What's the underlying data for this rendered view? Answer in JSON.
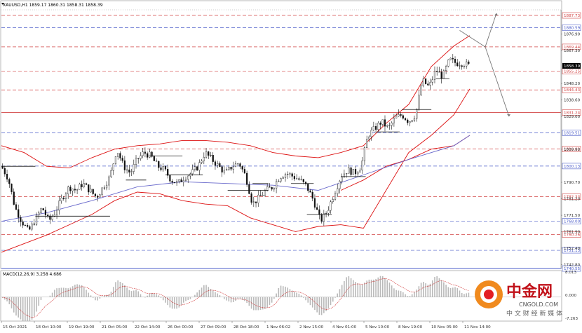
{
  "header": {
    "symbol_line": "XAUUSD,H1  1859.17 1860.31 1858.31 1858.39"
  },
  "macd": {
    "label": "MACD(12,26,9) 3.258 4.686",
    "top_tick": "8.013",
    "zero_tick": "0.000",
    "bottom_tick": "-7.263",
    "range": [
      -7.263,
      8.013
    ]
  },
  "watermark": {
    "cn": "中金网",
    "domain": "CNGOLD.COM",
    "slogan": "中 文 财 经 新 媒 体"
  },
  "colors": {
    "bull": "#111111",
    "bear": "#111111",
    "bb": "#dd1111",
    "ma": "#6a6acc",
    "red_level": "#d24545",
    "blue_level": "#4a5bc8",
    "label_bg": "#ffffff",
    "macd_hist": "#b9b9b9",
    "macd_signal": "#cc2222"
  },
  "chart_data": {
    "type": "candlestick",
    "symbol": "XAUUSD",
    "timeframe": "H1",
    "ylim": [
      1740.55,
      1891.0
    ],
    "ohlc_last": {
      "open": 1859.17,
      "high": 1860.31,
      "low": 1858.31,
      "close": 1858.39
    },
    "current_price": "1858.39",
    "price_ticks": [
      "1876.90",
      "1867.30",
      "1848.20",
      "1838.60",
      "1829.00",
      "1809.90",
      "1790.70",
      "1781.20",
      "1771.50",
      "1761.90",
      "1752.40",
      "1742.80"
    ],
    "x_tick_labels": [
      "15 Oct 2021",
      "18 Oct 10:00",
      "19 Oct 19:00",
      "21 Oct 05:00",
      "22 Oct 14:00",
      "26 Oct 00:00",
      "27 Oct 09:00",
      "28 Oct 18:00",
      "1 Nov 06:02",
      "2 Nov 15:00",
      "4 Nov 01:00",
      "5 Nov 10:00",
      "8 Nov 19:00",
      "10 Nov 05:00",
      "11 Nov 14:00"
    ],
    "levels": [
      {
        "value": "1887.73",
        "color": "red"
      },
      {
        "value": "1880.59",
        "color": "blue"
      },
      {
        "value": "1869.44",
        "color": "red"
      },
      {
        "value": "1855.25",
        "color": "red"
      },
      {
        "value": "1844.43",
        "color": "red"
      },
      {
        "value": "1831.24",
        "color": "red",
        "solid": true
      },
      {
        "value": "1819.51",
        "color": "blue"
      },
      {
        "value": "1810.02",
        "color": "red"
      },
      {
        "value": "1800.13",
        "color": "blue"
      },
      {
        "value": "1782.33",
        "color": "red"
      },
      {
        "value": "1768.00",
        "color": "blue"
      },
      {
        "value": "1760.26",
        "color": "red"
      },
      {
        "value": "1751.13",
        "color": "blue"
      },
      {
        "value": "1740.55",
        "color": "blue",
        "solid": true
      }
    ],
    "close_path": [
      [
        0,
        1800
      ],
      [
        6,
        1793
      ],
      [
        12,
        1776
      ],
      [
        18,
        1768
      ],
      [
        24,
        1762
      ],
      [
        30,
        1769
      ],
      [
        36,
        1776
      ],
      [
        42,
        1768
      ],
      [
        48,
        1774
      ],
      [
        54,
        1782
      ],
      [
        60,
        1788
      ],
      [
        66,
        1786
      ],
      [
        72,
        1790
      ],
      [
        78,
        1786
      ],
      [
        84,
        1782
      ],
      [
        90,
        1788
      ],
      [
        96,
        1794
      ],
      [
        102,
        1810
      ],
      [
        108,
        1800
      ],
      [
        114,
        1796
      ],
      [
        120,
        1804
      ],
      [
        126,
        1808
      ],
      [
        132,
        1806
      ],
      [
        138,
        1800
      ],
      [
        144,
        1798
      ],
      [
        150,
        1792
      ],
      [
        156,
        1790
      ],
      [
        162,
        1794
      ],
      [
        168,
        1796
      ],
      [
        174,
        1800
      ],
      [
        180,
        1808
      ],
      [
        186,
        1804
      ],
      [
        192,
        1800
      ],
      [
        198,
        1796
      ],
      [
        204,
        1800
      ],
      [
        210,
        1802
      ],
      [
        216,
        1794
      ],
      [
        222,
        1778
      ],
      [
        228,
        1782
      ],
      [
        234,
        1786
      ],
      [
        240,
        1788
      ],
      [
        246,
        1794
      ],
      [
        252,
        1796
      ],
      [
        258,
        1794
      ],
      [
        264,
        1792
      ],
      [
        270,
        1788
      ],
      [
        276,
        1780
      ],
      [
        282,
        1768
      ],
      [
        288,
        1774
      ],
      [
        294,
        1784
      ],
      [
        300,
        1794
      ],
      [
        306,
        1798
      ],
      [
        312,
        1796
      ],
      [
        318,
        1800
      ],
      [
        324,
        1818
      ],
      [
        330,
        1822
      ],
      [
        336,
        1826
      ],
      [
        342,
        1822
      ],
      [
        348,
        1828
      ],
      [
        354,
        1830
      ],
      [
        360,
        1826
      ],
      [
        366,
        1830
      ],
      [
        372,
        1850
      ],
      [
        378,
        1846
      ],
      [
        384,
        1856
      ],
      [
        390,
        1852
      ],
      [
        396,
        1862
      ],
      [
        402,
        1860
      ],
      [
        408,
        1860
      ],
      [
        414,
        1858.39
      ]
    ],
    "bb_upper": [
      [
        0,
        1812
      ],
      [
        20,
        1808
      ],
      [
        40,
        1800
      ],
      [
        60,
        1799
      ],
      [
        80,
        1805
      ],
      [
        100,
        1810
      ],
      [
        120,
        1812
      ],
      [
        140,
        1813
      ],
      [
        160,
        1815
      ],
      [
        180,
        1815
      ],
      [
        200,
        1814
      ],
      [
        220,
        1812
      ],
      [
        240,
        1808
      ],
      [
        260,
        1806
      ],
      [
        280,
        1805
      ],
      [
        300,
        1808
      ],
      [
        320,
        1812
      ],
      [
        340,
        1825
      ],
      [
        360,
        1836
      ],
      [
        380,
        1858
      ],
      [
        400,
        1870
      ],
      [
        414,
        1876
      ]
    ],
    "bb_lower": [
      [
        0,
        1750
      ],
      [
        20,
        1755
      ],
      [
        40,
        1760
      ],
      [
        60,
        1766
      ],
      [
        80,
        1772
      ],
      [
        100,
        1780
      ],
      [
        120,
        1785
      ],
      [
        140,
        1784
      ],
      [
        160,
        1780
      ],
      [
        180,
        1778
      ],
      [
        200,
        1777
      ],
      [
        220,
        1770
      ],
      [
        240,
        1766
      ],
      [
        260,
        1762
      ],
      [
        280,
        1765
      ],
      [
        300,
        1766
      ],
      [
        320,
        1764
      ],
      [
        340,
        1786
      ],
      [
        360,
        1808
      ],
      [
        380,
        1818
      ],
      [
        400,
        1830
      ],
      [
        414,
        1845
      ]
    ],
    "bb_mid_lower": [
      [
        300,
        1786
      ],
      [
        320,
        1792
      ],
      [
        340,
        1800
      ],
      [
        360,
        1804
      ],
      [
        380,
        1810
      ],
      [
        400,
        1812
      ],
      [
        414,
        1818
      ]
    ],
    "ma": [
      [
        0,
        1768
      ],
      [
        40,
        1773
      ],
      [
        80,
        1780
      ],
      [
        120,
        1788
      ],
      [
        160,
        1791
      ],
      [
        200,
        1790
      ],
      [
        240,
        1789
      ],
      [
        280,
        1786
      ],
      [
        320,
        1795
      ],
      [
        360,
        1804
      ],
      [
        400,
        1812
      ],
      [
        414,
        1818
      ]
    ]
  }
}
